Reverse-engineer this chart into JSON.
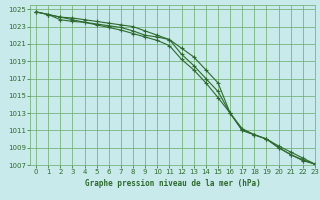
{
  "title": "Graphe pression niveau de la mer (hPa)",
  "bg_color": "#c8eaea",
  "grid_color": "#6aaa6a",
  "line_color": "#2d6a2d",
  "xlim": [
    -0.5,
    23
  ],
  "ylim": [
    1007,
    1025.5
  ],
  "xticks": [
    0,
    1,
    2,
    3,
    4,
    5,
    6,
    7,
    8,
    9,
    10,
    11,
    12,
    13,
    14,
    15,
    16,
    17,
    18,
    19,
    20,
    21,
    22,
    23
  ],
  "yticks": [
    1007,
    1009,
    1011,
    1013,
    1015,
    1017,
    1019,
    1021,
    1023,
    1025
  ],
  "line1_x": [
    0,
    1,
    2,
    3,
    4,
    5,
    6,
    7,
    8,
    9,
    10,
    11,
    12,
    13,
    14,
    15,
    16,
    17,
    18,
    19,
    20,
    21,
    22,
    23
  ],
  "line1_y": [
    1024.7,
    1024.4,
    1024.1,
    1023.8,
    1023.5,
    1023.2,
    1022.9,
    1022.6,
    1022.2,
    1021.8,
    1021.4,
    1020.8,
    1019.2,
    1018.0,
    1016.5,
    1014.8,
    1013.0,
    1011.2,
    1010.5,
    1010.0,
    1009.0,
    1008.2,
    1007.5,
    1007.1
  ],
  "line2_x": [
    0,
    1,
    2,
    3,
    4,
    5,
    6,
    7,
    8,
    9,
    10,
    11,
    12,
    13,
    14,
    15,
    16,
    17,
    18,
    19,
    20,
    21,
    22,
    23
  ],
  "line2_y": [
    1024.7,
    1024.4,
    1024.1,
    1024.0,
    1023.8,
    1023.6,
    1023.4,
    1023.2,
    1023.0,
    1022.5,
    1022.0,
    1021.5,
    1020.5,
    1019.5,
    1018.0,
    1016.5,
    1013.0,
    1011.0,
    1010.5,
    1010.0,
    1009.2,
    1008.5,
    1007.8,
    1007.1
  ],
  "line3_x": [
    0,
    1,
    2,
    3,
    4,
    5,
    6,
    7,
    8,
    9,
    10,
    11,
    12,
    13,
    14,
    15,
    16,
    17,
    18,
    19,
    20,
    21,
    22,
    23
  ],
  "line3_y": [
    1024.7,
    1024.4,
    1023.8,
    1023.6,
    1023.5,
    1023.3,
    1023.1,
    1022.9,
    1022.5,
    1022.0,
    1021.8,
    1021.5,
    1019.8,
    1018.5,
    1017.0,
    1015.5,
    1013.0,
    1011.0,
    1010.5,
    1010.0,
    1009.0,
    1008.2,
    1007.6,
    1007.1
  ]
}
